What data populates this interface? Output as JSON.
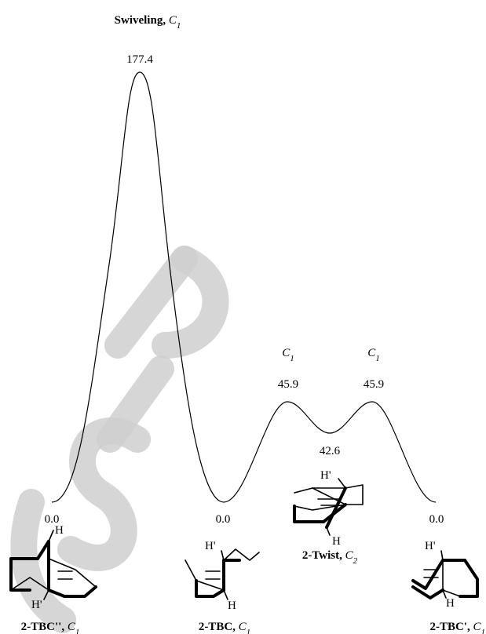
{
  "energies": {
    "swiveling": "177.4",
    "ts_left": "45.9",
    "ts_right": "45.9",
    "twist_min": "42.6",
    "tbc_dd": "0.0",
    "tbc": "0.0",
    "tbc_prime": "0.0"
  },
  "labels": {
    "swiveling_name": "Swiveling, ",
    "swiveling_sym": "C",
    "swiveling_sub": "1",
    "ts_left_sym": "C",
    "ts_left_sub": "1",
    "ts_right_sym": "C",
    "ts_right_sub": "1",
    "twist_name": "2-Twist, ",
    "twist_sym": "C",
    "twist_sub": "2",
    "tbc_dd_name": "2-TBC'', ",
    "tbc_dd_sym": "C",
    "tbc_dd_sub": "1",
    "tbc_name": "2-TBC, ",
    "tbc_sym": "C",
    "tbc_sub": "1",
    "tbc_prime_name": "2-TBC', ",
    "tbc_prime_sym": "C",
    "tbc_prime_sub": "1"
  },
  "atoms": {
    "h": "H",
    "h_prime": "H'"
  },
  "watermark": "SID"
}
